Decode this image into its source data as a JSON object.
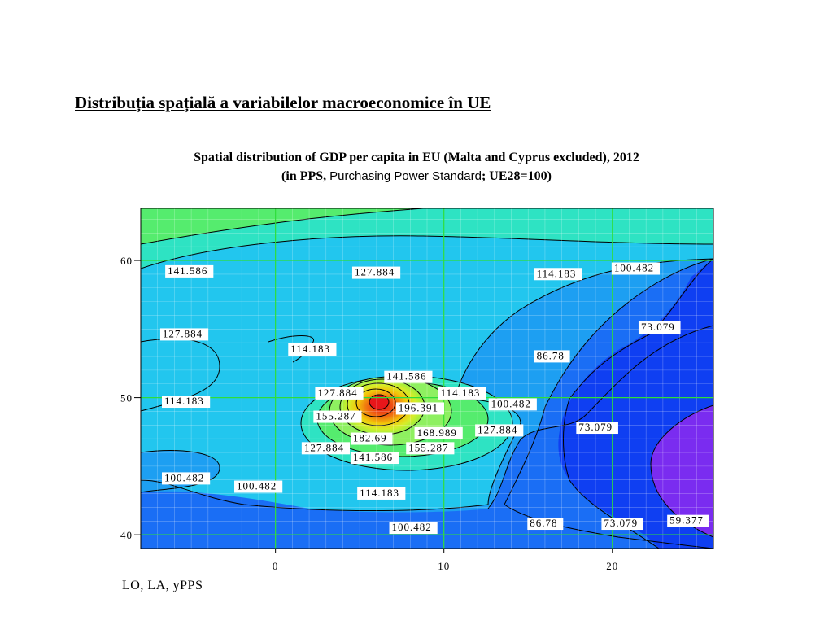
{
  "heading": "Distribuția spațială a variabilelor macroeconomice în UE",
  "subtitle_bold_1": "Spatial distribution of GDP per capita in EU (Malta and Cyprus excluded), 2012",
  "subtitle_bold_2a": "(in PPS, ",
  "subtitle_normal": "Purchasing Power Standard",
  "subtitle_bold_2b": "; UE28=100)",
  "footer": "LO, LA, yPPS",
  "chart_data": {
    "type": "heatmap",
    "subtype": "filled-contour",
    "title": "Spatial distribution of GDP per capita in EU (Malta and Cyprus excluded), 2012 (in PPS, Purchasing Power Standard; UE28=100)",
    "xlabel": "",
    "ylabel": "",
    "xlim": [
      -8,
      26
    ],
    "ylim": [
      39,
      63.8
    ],
    "x_ticks": [
      0,
      10,
      20
    ],
    "y_ticks": [
      40,
      50,
      60
    ],
    "grid": true,
    "contour_levels": [
      59.377,
      73.079,
      86.78,
      100.482,
      114.183,
      127.884,
      141.586,
      155.287,
      168.989,
      182.69,
      196.391
    ],
    "colors": {
      "lowest": "#7a2cf0",
      "low": "#0f3ff2",
      "mid_low": "#1d6df5",
      "mid": "#22c6ee",
      "mid_high": "#2ee3c3",
      "high": "#55ec6e",
      "peak": "#e8161a",
      "grid": "#2ede3a"
    },
    "contour_labels": [
      {
        "text": "141.586",
        "x": -6.4,
        "y": 59.0
      },
      {
        "text": "127.884",
        "x": 4.7,
        "y": 58.9
      },
      {
        "text": "114.183",
        "x": 15.5,
        "y": 58.8
      },
      {
        "text": "100.482",
        "x": 20.1,
        "y": 59.2
      },
      {
        "text": "73.079",
        "x": 21.7,
        "y": 54.9
      },
      {
        "text": "127.884",
        "x": -6.7,
        "y": 54.4
      },
      {
        "text": "114.183",
        "x": 0.9,
        "y": 53.3
      },
      {
        "text": "86.78",
        "x": 15.5,
        "y": 52.8
      },
      {
        "text": "141.586",
        "x": 6.6,
        "y": 51.3
      },
      {
        "text": "127.884",
        "x": 2.5,
        "y": 50.1
      },
      {
        "text": "114.183",
        "x": 9.8,
        "y": 50.1
      },
      {
        "text": "114.183",
        "x": -6.6,
        "y": 49.5
      },
      {
        "text": "100.482",
        "x": 12.8,
        "y": 49.3
      },
      {
        "text": "196.391",
        "x": 7.3,
        "y": 49.0
      },
      {
        "text": "155.287",
        "x": 2.4,
        "y": 48.4
      },
      {
        "text": "73.079",
        "x": 18.0,
        "y": 47.6
      },
      {
        "text": "127.884",
        "x": 12.0,
        "y": 47.4
      },
      {
        "text": "168.989",
        "x": 8.4,
        "y": 47.2
      },
      {
        "text": "182.69",
        "x": 4.6,
        "y": 46.8
      },
      {
        "text": "127.884",
        "x": 1.7,
        "y": 46.1
      },
      {
        "text": "155.287",
        "x": 7.9,
        "y": 46.1
      },
      {
        "text": "141.586",
        "x": 4.6,
        "y": 45.4
      },
      {
        "text": "100.482",
        "x": -6.6,
        "y": 43.9
      },
      {
        "text": "100.482",
        "x": -2.3,
        "y": 43.3
      },
      {
        "text": "114.183",
        "x": 5.0,
        "y": 42.8
      },
      {
        "text": "86.78",
        "x": 15.1,
        "y": 40.6
      },
      {
        "text": "73.079",
        "x": 19.5,
        "y": 40.6
      },
      {
        "text": "59.377",
        "x": 23.4,
        "y": 40.8
      },
      {
        "text": "100.482",
        "x": 6.9,
        "y": 40.3
      }
    ]
  }
}
